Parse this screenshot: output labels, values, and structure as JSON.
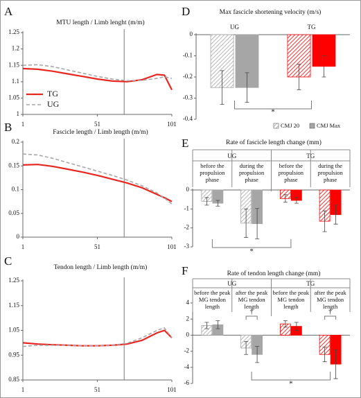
{
  "chart_data": [
    {
      "type": "line",
      "panel": "A",
      "title": "MTU length  / Limb lenght (m/m)",
      "x": [
        1,
        11,
        21,
        31,
        41,
        51,
        61,
        71,
        81,
        91,
        96,
        101
      ],
      "xlim": [
        1,
        101
      ],
      "xticks": [
        1,
        51,
        101
      ],
      "ylim": [
        1,
        1.25
      ],
      "yticks": [
        1,
        1.05,
        1.1,
        1.15,
        1.2,
        1.25
      ],
      "vline": 69,
      "legend": "lower left",
      "series": [
        {
          "name": "TG",
          "color": "#e8251f",
          "style": "solid",
          "values": [
            1.14,
            1.138,
            1.132,
            1.124,
            1.116,
            1.108,
            1.102,
            1.1,
            1.106,
            1.122,
            1.12,
            1.075
          ]
        },
        {
          "name": "UG",
          "color": "#a6a6a6",
          "style": "dashed",
          "values": [
            1.15,
            1.152,
            1.146,
            1.136,
            1.126,
            1.116,
            1.108,
            1.103,
            1.104,
            1.11,
            1.115,
            1.11
          ]
        }
      ]
    },
    {
      "type": "line",
      "panel": "B",
      "title": "Fascicle length / Limb length (m/m)",
      "x": [
        1,
        11,
        21,
        31,
        41,
        51,
        61,
        71,
        81,
        91,
        96,
        101
      ],
      "xlim": [
        1,
        101
      ],
      "xticks": [
        1,
        51,
        101
      ],
      "ylim": [
        0,
        0.2
      ],
      "yticks": [
        0,
        0.05,
        0.1,
        0.15,
        0.2
      ],
      "vline": 69,
      "series": [
        {
          "name": "TG",
          "color": "#e8251f",
          "style": "solid",
          "values": [
            0.152,
            0.153,
            0.149,
            0.143,
            0.137,
            0.13,
            0.122,
            0.114,
            0.104,
            0.09,
            0.083,
            0.075
          ]
        },
        {
          "name": "UG",
          "color": "#a6a6a6",
          "style": "dashed",
          "values": [
            0.175,
            0.173,
            0.166,
            0.157,
            0.148,
            0.139,
            0.13,
            0.12,
            0.108,
            0.093,
            0.082,
            0.07
          ]
        }
      ]
    },
    {
      "type": "line",
      "panel": "C",
      "title": "Tendon length / Limb length (m/m)",
      "x": [
        1,
        11,
        21,
        31,
        41,
        51,
        61,
        71,
        81,
        91,
        96,
        101
      ],
      "xlim": [
        1,
        101
      ],
      "xticks": [
        1,
        51,
        101
      ],
      "ylim": [
        0.85,
        1.25
      ],
      "yticks": [
        0.85,
        0.95,
        1.05,
        1.15,
        1.25
      ],
      "vline": 69,
      "series": [
        {
          "name": "TG",
          "color": "#e8251f",
          "style": "solid",
          "values": [
            1.0,
            0.995,
            0.992,
            0.99,
            0.988,
            0.988,
            0.99,
            0.995,
            1.01,
            1.04,
            1.05,
            1.02
          ]
        },
        {
          "name": "UG",
          "color": "#a6a6a6",
          "style": "dashed",
          "values": [
            0.985,
            0.99,
            0.99,
            0.99,
            0.988,
            0.988,
            0.99,
            0.998,
            1.02,
            1.05,
            1.06,
            1.02
          ]
        }
      ]
    },
    {
      "type": "bar",
      "panel": "D",
      "title": "Max fascicle shortening velocity (m/s)",
      "categories": [
        "UG",
        "TG"
      ],
      "category_colors": [
        "#a6a6a6",
        "#ff0000"
      ],
      "ylim": [
        -0.4,
        0
      ],
      "yticks": [
        0,
        -0.1,
        -0.2,
        -0.3,
        -0.4
      ],
      "legend": "lower right",
      "annotations": [
        "*"
      ],
      "series": [
        {
          "name": "CMJ 20",
          "pattern": "hatch",
          "values": [
            -0.25,
            -0.2
          ],
          "errors": [
            0.08,
            0.06
          ]
        },
        {
          "name": "CMJ Max",
          "pattern": "solid",
          "values": [
            -0.25,
            -0.15
          ],
          "errors": [
            0.07,
            0.05
          ]
        }
      ]
    },
    {
      "type": "bar",
      "panel": "E",
      "title": "Rate of fascicle length change (mm)",
      "groups": [
        "UG",
        "TG"
      ],
      "categories": [
        "before the propulsion phase",
        "during the propulsion phase",
        "before the propulsion phase",
        "during the propulsion phase"
      ],
      "category_colors": [
        "#a6a6a6",
        "#a6a6a6",
        "#ff0000",
        "#ff0000"
      ],
      "ylim": [
        -3,
        0
      ],
      "yticks": [
        0,
        -1,
        -2,
        -3
      ],
      "annotations": [
        "*"
      ],
      "series": [
        {
          "name": "CMJ 20",
          "pattern": "hatch",
          "values": [
            -0.6,
            -1.75,
            -0.45,
            -1.65
          ],
          "errors": [
            0.2,
            0.75,
            0.2,
            0.55
          ]
        },
        {
          "name": "CMJ Max",
          "pattern": "solid",
          "values": [
            -0.7,
            -1.78,
            -0.55,
            -1.3
          ],
          "errors": [
            0.15,
            0.8,
            0.15,
            0.5
          ]
        }
      ]
    },
    {
      "type": "bar",
      "panel": "F",
      "title": "Rate of tendon length change (mm)",
      "groups": [
        "UG",
        "TG"
      ],
      "categories": [
        "before the peak MG tendon length",
        "after the peak MG tendon length",
        "before the peak MG tendon length",
        "after the peak MG tendon length"
      ],
      "category_colors": [
        "#a6a6a6",
        "#a6a6a6",
        "#ff0000",
        "#ff0000"
      ],
      "ylim": [
        -6,
        4
      ],
      "yticks": [
        4,
        2,
        0,
        -2,
        -4,
        -6
      ],
      "annotations": [
        "*",
        "†",
        "†"
      ],
      "series": [
        {
          "name": "CMJ 20",
          "pattern": "hatch",
          "values": [
            1.2,
            -1.6,
            1.4,
            -2.4
          ],
          "errors": [
            0.4,
            0.8,
            0.4,
            0.9
          ]
        },
        {
          "name": "CMJ Max",
          "pattern": "solid",
          "values": [
            1.3,
            -2.4,
            1.1,
            -3.6
          ],
          "errors": [
            0.5,
            1.0,
            0.5,
            1.8
          ]
        }
      ]
    }
  ]
}
